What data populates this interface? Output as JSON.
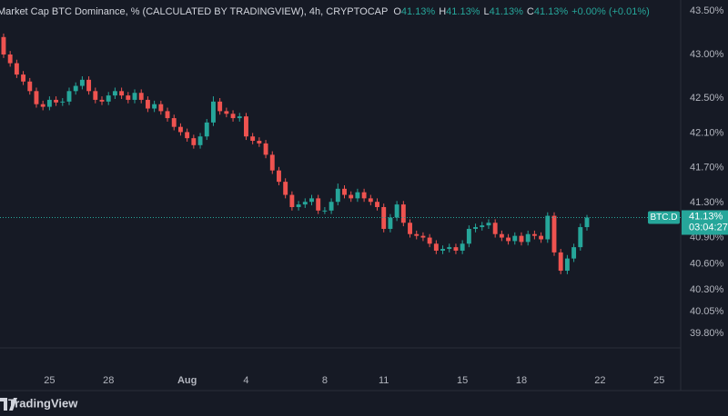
{
  "chart_data": {
    "type": "candlestick",
    "title": "Market Cap BTC Dominance, % (CALCULATED BY TRADINGVIEW), 4h, CRYPTOCAP",
    "ohlc_legend": [
      {
        "label": "O",
        "value": "41.13%"
      },
      {
        "label": "H",
        "value": "41.13%"
      },
      {
        "label": "L",
        "value": "41.13%"
      },
      {
        "label": "C",
        "value": "41.13%"
      }
    ],
    "change": "+0.00% (+0.01%)",
    "symbol": "BTC.D",
    "last_price": {
      "value": 41.13,
      "label": "41.13%"
    },
    "countdown": "03:04:27",
    "brand": "TradingView",
    "up_color": "#26a69a",
    "down_color": "#ef5350",
    "categories": [
      null,
      null,
      null,
      null,
      null,
      null,
      null,
      null,
      null,
      null,
      null,
      null,
      null,
      null,
      null,
      null,
      null,
      null,
      null,
      null,
      null,
      null,
      null,
      null,
      null,
      null,
      null,
      null,
      null,
      null,
      null,
      null,
      null,
      null,
      null,
      null,
      null,
      null,
      null,
      null,
      null,
      null,
      null,
      null,
      null,
      null,
      null,
      null,
      null,
      null,
      null,
      null,
      null,
      null,
      null,
      null,
      null,
      null,
      null,
      null,
      null,
      null,
      null,
      null,
      null,
      null,
      null,
      null,
      null,
      null,
      null,
      null,
      null,
      null,
      null,
      null,
      null,
      null,
      null,
      null,
      null,
      null,
      null,
      null,
      null,
      null,
      null,
      null,
      null,
      null
    ],
    "open": [
      43.2,
      43.0,
      42.9,
      42.77,
      42.69,
      42.58,
      42.43,
      42.4,
      42.48,
      42.45,
      42.46,
      42.58,
      42.64,
      42.71,
      42.58,
      42.48,
      42.46,
      42.53,
      42.58,
      42.53,
      42.48,
      42.56,
      42.48,
      42.38,
      42.43,
      42.35,
      42.27,
      42.17,
      42.11,
      42.04,
      41.96,
      42.06,
      42.22,
      42.46,
      42.35,
      42.32,
      42.27,
      42.29,
      42.06,
      42.01,
      41.98,
      41.85,
      41.67,
      41.54,
      41.39,
      41.25,
      41.28,
      41.31,
      41.35,
      41.21,
      41.21,
      41.31,
      41.46,
      41.39,
      41.35,
      41.42,
      41.35,
      41.31,
      41.25,
      41.0,
      41.13,
      41.28,
      41.07,
      40.94,
      40.92,
      40.9,
      40.83,
      40.75,
      40.77,
      40.79,
      40.75,
      40.83,
      41.0,
      41.02,
      41.04,
      41.07,
      40.94,
      40.9,
      40.86,
      40.92,
      40.85,
      40.94,
      40.92,
      40.88,
      41.15,
      40.73,
      40.52,
      40.66,
      40.79,
      41.02
    ],
    "high": [
      43.24,
      43.04,
      42.94,
      42.81,
      42.73,
      42.62,
      42.47,
      42.52,
      42.52,
      42.5,
      42.62,
      42.68,
      42.75,
      42.75,
      42.62,
      42.52,
      42.57,
      42.62,
      42.62,
      42.57,
      42.6,
      42.6,
      42.52,
      42.47,
      42.47,
      42.39,
      42.31,
      42.21,
      42.15,
      42.08,
      42.1,
      42.26,
      42.52,
      42.5,
      42.39,
      42.36,
      42.33,
      42.33,
      42.1,
      42.05,
      42.02,
      41.89,
      41.71,
      41.58,
      41.43,
      41.32,
      41.35,
      41.39,
      41.39,
      41.25,
      41.35,
      41.52,
      41.5,
      41.43,
      41.46,
      41.46,
      41.39,
      41.35,
      41.29,
      41.17,
      41.32,
      41.32,
      41.11,
      40.98,
      40.96,
      40.94,
      40.87,
      40.81,
      40.83,
      40.83,
      40.87,
      41.04,
      41.06,
      41.08,
      41.11,
      41.11,
      40.98,
      40.94,
      40.96,
      40.96,
      40.98,
      40.98,
      40.96,
      41.19,
      41.19,
      40.77,
      40.7,
      40.83,
      41.06,
      41.16
    ],
    "low": [
      42.96,
      42.86,
      42.73,
      42.65,
      42.54,
      42.39,
      42.36,
      42.36,
      42.41,
      42.41,
      42.42,
      42.54,
      42.6,
      42.54,
      42.44,
      42.42,
      42.42,
      42.49,
      42.49,
      42.44,
      42.44,
      42.44,
      42.34,
      42.34,
      42.31,
      42.23,
      42.13,
      42.07,
      42.0,
      41.92,
      41.92,
      42.02,
      42.18,
      42.31,
      42.28,
      42.23,
      42.23,
      42.02,
      41.97,
      41.94,
      41.81,
      41.63,
      41.5,
      41.35,
      41.21,
      41.21,
      41.24,
      41.27,
      41.17,
      41.17,
      41.17,
      41.27,
      41.35,
      41.31,
      41.31,
      41.31,
      41.27,
      41.21,
      40.96,
      40.96,
      41.09,
      41.03,
      40.9,
      40.88,
      40.86,
      40.79,
      40.71,
      40.71,
      40.73,
      40.71,
      40.71,
      40.79,
      40.96,
      40.98,
      41.0,
      40.9,
      40.86,
      40.82,
      40.82,
      40.81,
      40.81,
      40.88,
      40.84,
      40.84,
      40.69,
      40.48,
      40.48,
      40.62,
      40.75,
      40.98
    ],
    "close": [
      43.0,
      42.9,
      42.77,
      42.69,
      42.58,
      42.43,
      42.4,
      42.48,
      42.45,
      42.46,
      42.58,
      42.64,
      42.71,
      42.58,
      42.48,
      42.46,
      42.53,
      42.58,
      42.53,
      42.48,
      42.56,
      42.48,
      42.38,
      42.43,
      42.35,
      42.27,
      42.17,
      42.11,
      42.04,
      41.96,
      42.06,
      42.22,
      42.46,
      42.35,
      42.32,
      42.27,
      42.29,
      42.06,
      42.01,
      41.98,
      41.85,
      41.67,
      41.54,
      41.39,
      41.25,
      41.28,
      41.31,
      41.35,
      41.21,
      41.21,
      41.31,
      41.46,
      41.39,
      41.35,
      41.42,
      41.35,
      41.31,
      41.25,
      41.0,
      41.13,
      41.28,
      41.07,
      40.94,
      40.92,
      40.9,
      40.83,
      40.75,
      40.77,
      40.79,
      40.75,
      40.83,
      41.0,
      41.02,
      41.04,
      41.07,
      40.94,
      40.9,
      40.86,
      40.92,
      40.85,
      40.94,
      40.92,
      40.88,
      41.15,
      40.73,
      40.52,
      40.66,
      40.79,
      41.02,
      41.13
    ],
    "xlim": [
      -0.55,
      103.3
    ],
    "xticks": [
      {
        "value": 7,
        "label": "25"
      },
      {
        "value": 16,
        "label": "28"
      },
      {
        "value": 28,
        "label": "Aug"
      },
      {
        "value": 37,
        "label": "4"
      },
      {
        "value": 49,
        "label": "8"
      },
      {
        "value": 58,
        "label": "11"
      },
      {
        "value": 70,
        "label": "15"
      },
      {
        "value": 79,
        "label": "18"
      },
      {
        "value": 91,
        "label": "22"
      },
      {
        "value": 100,
        "label": "25"
      }
    ],
    "ylim": [
      39.635,
      43.625
    ],
    "yticks": [
      {
        "value": 43.5,
        "label": "43.50%"
      },
      {
        "value": 43.0,
        "label": "43.00%"
      },
      {
        "value": 42.5,
        "label": "42.50%"
      },
      {
        "value": 42.1,
        "label": "42.10%"
      },
      {
        "value": 41.7,
        "label": "41.70%"
      },
      {
        "value": 41.3,
        "label": "41.30%"
      },
      {
        "value": 40.9,
        "label": "40.90%"
      },
      {
        "value": 40.6,
        "label": "40.60%"
      },
      {
        "value": 40.3,
        "label": "40.30%"
      },
      {
        "value": 40.05,
        "label": "40.05%"
      },
      {
        "value": 39.8,
        "label": "39.80%"
      }
    ],
    "grid": false
  }
}
